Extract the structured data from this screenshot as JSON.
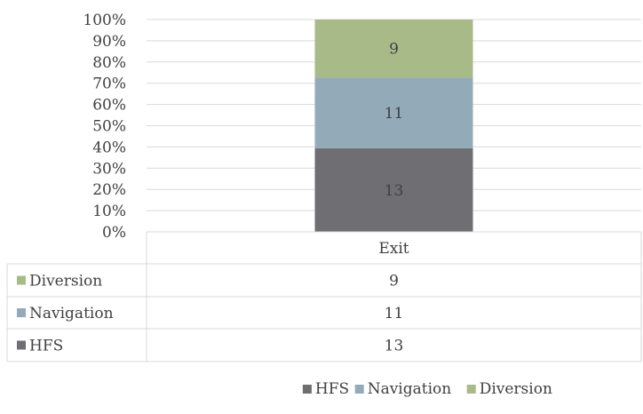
{
  "chart_data": {
    "type": "bar",
    "stacked": "percent",
    "categories": [
      "Exit"
    ],
    "series": [
      {
        "name": "HFS",
        "values": [
          13
        ],
        "color": "#6f6e72"
      },
      {
        "name": "Navigation",
        "values": [
          11
        ],
        "color": "#93aab9"
      },
      {
        "name": "Diversion",
        "values": [
          9
        ],
        "color": "#a8ba88"
      }
    ],
    "y_ticks": [
      "0%",
      "10%",
      "20%",
      "30%",
      "40%",
      "50%",
      "60%",
      "70%",
      "80%",
      "90%",
      "100%"
    ],
    "ylim": [
      0,
      100
    ],
    "grid": true,
    "data_table": {
      "row_order": [
        "Diversion",
        "Navigation",
        "HFS"
      ]
    },
    "legend": {
      "position": "bottom",
      "order": [
        "HFS",
        "Navigation",
        "Diversion"
      ]
    },
    "gridline_color": "#d9d9d9",
    "text_color": "#404040"
  }
}
